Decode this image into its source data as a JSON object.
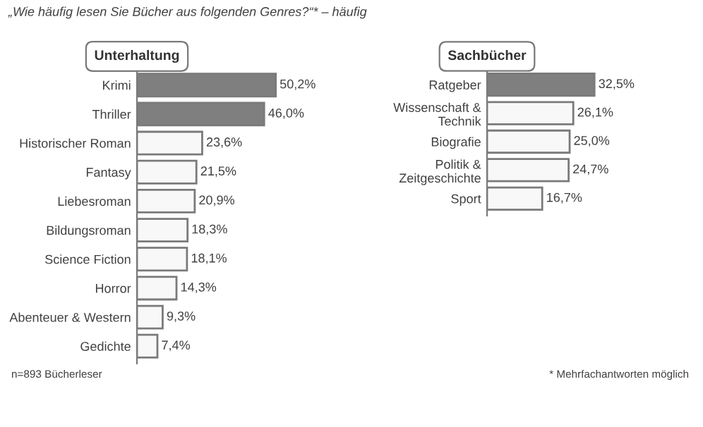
{
  "chart_data": [
    {
      "type": "bar",
      "orientation": "horizontal",
      "title": "„Wie häufig lesen Sie Bücher aus folgenden Genres?“* – häufig",
      "subtitle": "Unterhaltung",
      "categories": [
        "Krimi",
        "Thriller",
        "Historischer Roman",
        "Fantasy",
        "Liebesroman",
        "Bildungsroman",
        "Science Fiction",
        "Horror",
        "Abenteuer & Western",
        "Gedichte"
      ],
      "values": [
        50.2,
        46.0,
        23.6,
        21.5,
        20.9,
        18.3,
        18.1,
        14.3,
        9.3,
        7.4
      ],
      "value_labels": [
        "50,2%",
        "46,0%",
        "23,6%",
        "21,5%",
        "20,9%",
        "18,3%",
        "18,1%",
        "14,3%",
        "9,3%",
        "7,4%"
      ],
      "colors": [
        "#7f7f7f",
        "#7f7f7f",
        "#f8f8f8",
        "#f8f8f8",
        "#f8f8f8",
        "#f8f8f8",
        "#f8f8f8",
        "#f8f8f8",
        "#f8f8f8",
        "#f8f8f8"
      ],
      "tick_labels": "y",
      "grid": false,
      "legend": false,
      "annotations": [
        "n=893 Bücherleser"
      ]
    },
    {
      "type": "bar",
      "orientation": "horizontal",
      "subtitle": "Sachbücher",
      "categories": [
        "Ratgeber",
        "Wissenschaft &\nTechnik",
        "Biografie",
        "Politik &\nZeitgeschichte",
        "Sport"
      ],
      "values": [
        32.5,
        26.1,
        25.0,
        24.7,
        16.7
      ],
      "value_labels": [
        "32,5%",
        "26,1%",
        "25,0%",
        "24,7%",
        "16,7%"
      ],
      "colors": [
        "#7f7f7f",
        "#f8f8f8",
        "#f8f8f8",
        "#f8f8f8",
        "#f8f8f8"
      ],
      "tick_labels": "y",
      "grid": false,
      "legend": false,
      "annotations": [
        "* Mehrfachantworten möglich"
      ]
    }
  ]
}
